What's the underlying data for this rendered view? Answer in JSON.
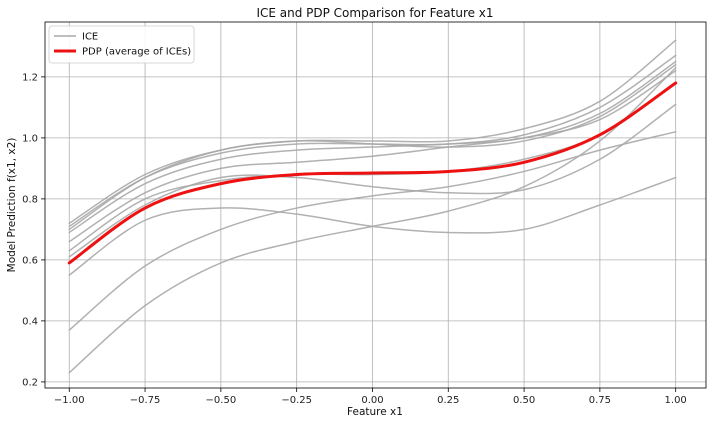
{
  "chart_data": {
    "type": "line",
    "title": "ICE and PDP Comparison for Feature x1",
    "xlabel": "Feature x1",
    "ylabel": "Model Prediction f(x1, x2)",
    "xlim": [
      -1.08,
      1.1
    ],
    "ylim": [
      0.18,
      1.38
    ],
    "xticks": [
      -1.0,
      -0.75,
      -0.5,
      -0.25,
      0.0,
      0.25,
      0.5,
      0.75,
      1.0
    ],
    "xtick_labels": [
      "−1.00",
      "−0.75",
      "−0.50",
      "−0.25",
      "0.00",
      "0.25",
      "0.50",
      "0.75",
      "1.00"
    ],
    "yticks": [
      0.2,
      0.4,
      0.6,
      0.8,
      1.0,
      1.2
    ],
    "ytick_labels": [
      "0.2",
      "0.4",
      "0.6",
      "0.8",
      "1.0",
      "1.2"
    ],
    "grid": true,
    "legend": {
      "placement": "top-left",
      "entries": [
        "ICE",
        "PDP (average of ICEs)"
      ]
    },
    "colors": {
      "ice": "#a9a9a9",
      "pdp": "#ee1111"
    },
    "x": [
      -1.0,
      -0.75,
      -0.5,
      -0.25,
      0.0,
      0.25,
      0.5,
      0.75,
      1.0
    ],
    "series": [
      {
        "role": "ice",
        "values": [
          0.72,
          0.88,
          0.96,
          0.99,
          0.99,
          0.99,
          1.03,
          1.12,
          1.32
        ]
      },
      {
        "role": "ice",
        "values": [
          0.71,
          0.87,
          0.95,
          0.98,
          0.98,
          0.98,
          1.01,
          1.1,
          1.27
        ]
      },
      {
        "role": "ice",
        "values": [
          0.7,
          0.87,
          0.96,
          0.99,
          0.98,
          0.97,
          0.99,
          1.07,
          1.24
        ]
      },
      {
        "role": "ice",
        "values": [
          0.69,
          0.85,
          0.93,
          0.96,
          0.97,
          0.98,
          1.0,
          1.08,
          1.25
        ]
      },
      {
        "role": "ice",
        "values": [
          0.66,
          0.82,
          0.9,
          0.92,
          0.94,
          0.97,
          1.0,
          1.06,
          1.22
        ]
      },
      {
        "role": "ice",
        "values": [
          0.63,
          0.8,
          0.86,
          0.88,
          0.88,
          0.89,
          0.93,
          1.01,
          1.18
        ]
      },
      {
        "role": "ice",
        "values": [
          0.61,
          0.78,
          0.87,
          0.87,
          0.84,
          0.82,
          0.83,
          0.93,
          1.11
        ]
      },
      {
        "role": "ice",
        "values": [
          0.55,
          0.73,
          0.77,
          0.75,
          0.71,
          0.69,
          0.7,
          0.78,
          0.87
        ]
      },
      {
        "role": "ice",
        "values": [
          0.37,
          0.58,
          0.7,
          0.77,
          0.81,
          0.84,
          0.89,
          0.96,
          1.02
        ]
      },
      {
        "role": "ice",
        "values": [
          0.23,
          0.45,
          0.59,
          0.66,
          0.71,
          0.76,
          0.84,
          0.99,
          1.23
        ]
      },
      {
        "role": "pdp",
        "name": "PDP (average of ICEs)",
        "values": [
          0.59,
          0.77,
          0.85,
          0.88,
          0.885,
          0.89,
          0.92,
          1.01,
          1.18
        ]
      }
    ]
  }
}
